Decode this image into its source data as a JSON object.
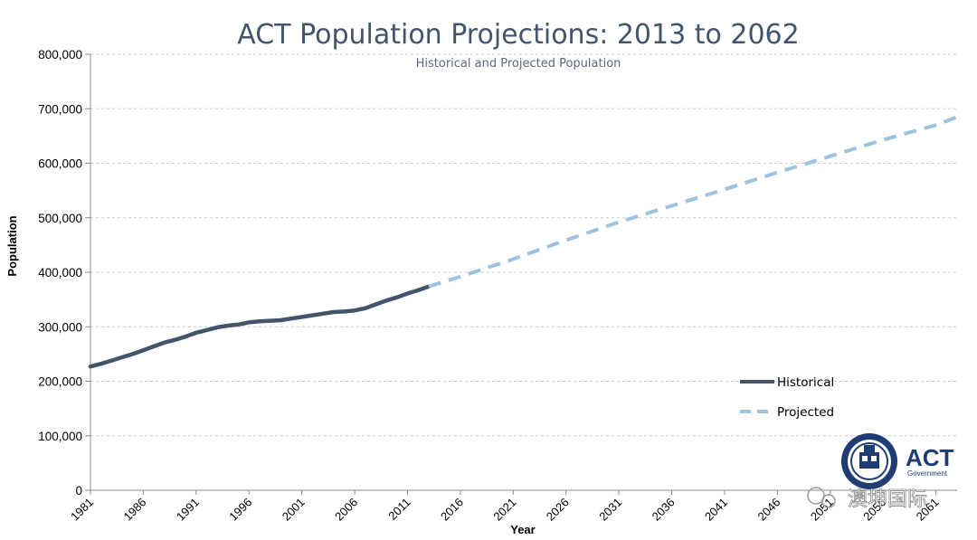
{
  "chart_data": {
    "type": "line",
    "title": "ACT Population Projections: 2013 to 2062",
    "subtitle": "Historical and Projected Population",
    "xlabel": "Year",
    "ylabel": "Population",
    "xlim": [
      1981,
      2063
    ],
    "ylim": [
      0,
      800000
    ],
    "y_ticks": [
      0,
      100000,
      200000,
      300000,
      400000,
      500000,
      600000,
      700000,
      800000
    ],
    "y_tick_labels": [
      "0",
      "100,000",
      "200,000",
      "300,000",
      "400,000",
      "500,000",
      "600,000",
      "700,000",
      "800,000"
    ],
    "x_ticks": [
      1981,
      1986,
      1991,
      1996,
      2001,
      2006,
      2011,
      2016,
      2021,
      2026,
      2031,
      2036,
      2041,
      2046,
      2051,
      2056,
      2061
    ],
    "x_tick_labels": [
      "1981",
      "1986",
      "1991",
      "1996",
      "2001",
      "2006",
      "2011",
      "2016",
      "2021",
      "2026",
      "2031",
      "2036",
      "2041",
      "2046",
      "2051",
      "2056",
      "2061"
    ],
    "grid": true,
    "legend_position": "right",
    "series": [
      {
        "name": "Historical",
        "color": "#44546a",
        "style": "solid",
        "x": [
          1981,
          1982,
          1983,
          1984,
          1985,
          1986,
          1987,
          1988,
          1989,
          1990,
          1991,
          1992,
          1993,
          1994,
          1995,
          1996,
          1997,
          1998,
          1999,
          2000,
          2001,
          2002,
          2003,
          2004,
          2005,
          2006,
          2007,
          2008,
          2009,
          2010,
          2011,
          2012,
          2013
        ],
        "y": [
          227000,
          232000,
          238000,
          244000,
          250000,
          257000,
          264000,
          271000,
          276000,
          282000,
          289000,
          294000,
          299000,
          302000,
          304000,
          308000,
          310000,
          311000,
          312000,
          315000,
          318000,
          321000,
          324000,
          327000,
          328000,
          330000,
          334000,
          341000,
          348000,
          354000,
          361000,
          367000,
          374000
        ]
      },
      {
        "name": "Projected",
        "color": "#9fc3de",
        "style": "dashed",
        "x": [
          2013,
          2016,
          2021,
          2026,
          2031,
          2036,
          2041,
          2046,
          2051,
          2056,
          2061,
          2063
        ],
        "y": [
          374000,
          392000,
          424000,
          459000,
          492000,
          522000,
          552000,
          583000,
          613000,
          643000,
          670000,
          685000
        ]
      }
    ]
  },
  "logo": {
    "word": "ACT",
    "sub": "Government"
  },
  "watermark": {
    "text": "澳坤国际"
  }
}
